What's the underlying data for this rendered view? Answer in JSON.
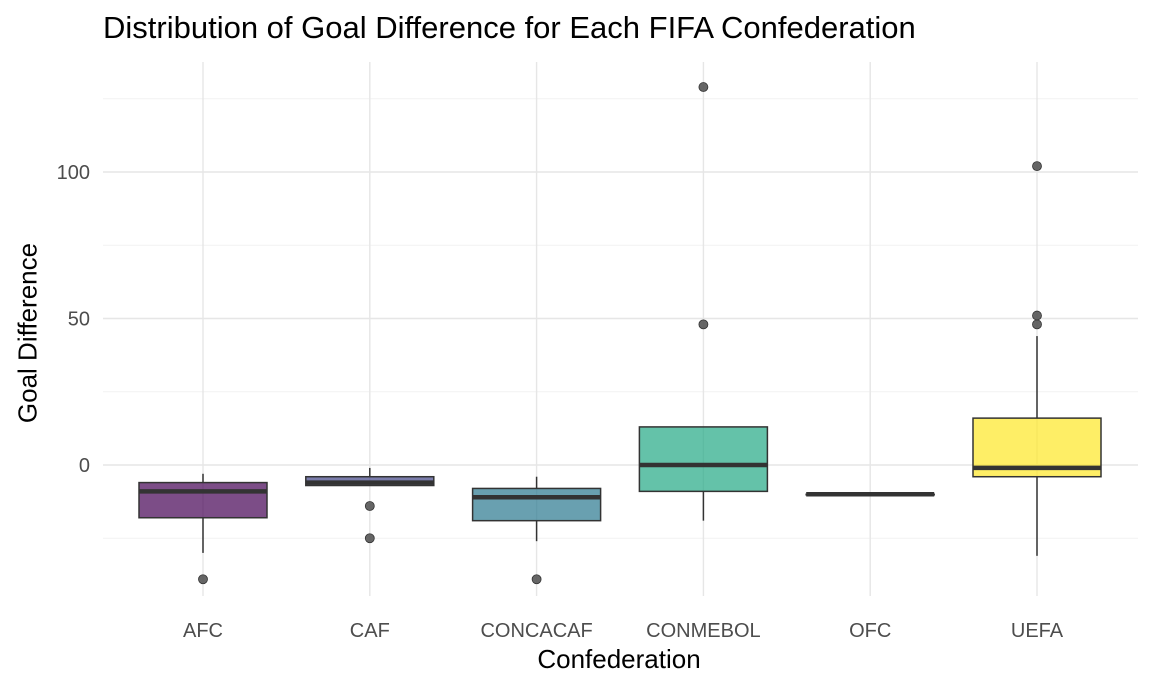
{
  "chart_data": {
    "type": "box",
    "title": "Distribution of Goal Difference for Each FIFA Confederation",
    "xlabel": "Confederation",
    "ylabel": "Goal Difference",
    "ylim": [
      -36,
      131
    ],
    "yticks": [
      0,
      50,
      100
    ],
    "grid": true,
    "categories": [
      "AFC",
      "CAF",
      "CONCACAF",
      "CONMEBOL",
      "OFC",
      "UEFA"
    ],
    "boxes": [
      {
        "name": "AFC",
        "color": "#440154",
        "whisker_low": -30,
        "q1": -18,
        "median": -9,
        "q3": -6,
        "whisker_high": -3,
        "outliers": [
          -39
        ]
      },
      {
        "name": "CAF",
        "color": "#414487",
        "whisker_low": -7,
        "q1": -7,
        "median": -6,
        "q3": -4,
        "whisker_high": -1,
        "outliers": [
          -14,
          -25
        ]
      },
      {
        "name": "CONCACAF",
        "color": "#2a788e",
        "whisker_low": -26,
        "q1": -19,
        "median": -11,
        "q3": -8,
        "whisker_high": -4,
        "outliers": [
          -39
        ]
      },
      {
        "name": "CONMEBOL",
        "color": "#22a884",
        "whisker_low": -19,
        "q1": -9,
        "median": 0,
        "q3": 13,
        "whisker_high": 13,
        "outliers": [
          48,
          129
        ]
      },
      {
        "name": "OFC",
        "color": "#7ad151",
        "whisker_low": -10,
        "q1": -10,
        "median": -10,
        "q3": -10,
        "whisker_high": -10,
        "outliers": []
      },
      {
        "name": "UEFA",
        "color": "#fde725",
        "whisker_low": -31,
        "q1": -4,
        "median": -1,
        "q3": 16,
        "whisker_high": 44,
        "outliers": [
          48,
          51,
          102
        ]
      }
    ]
  }
}
